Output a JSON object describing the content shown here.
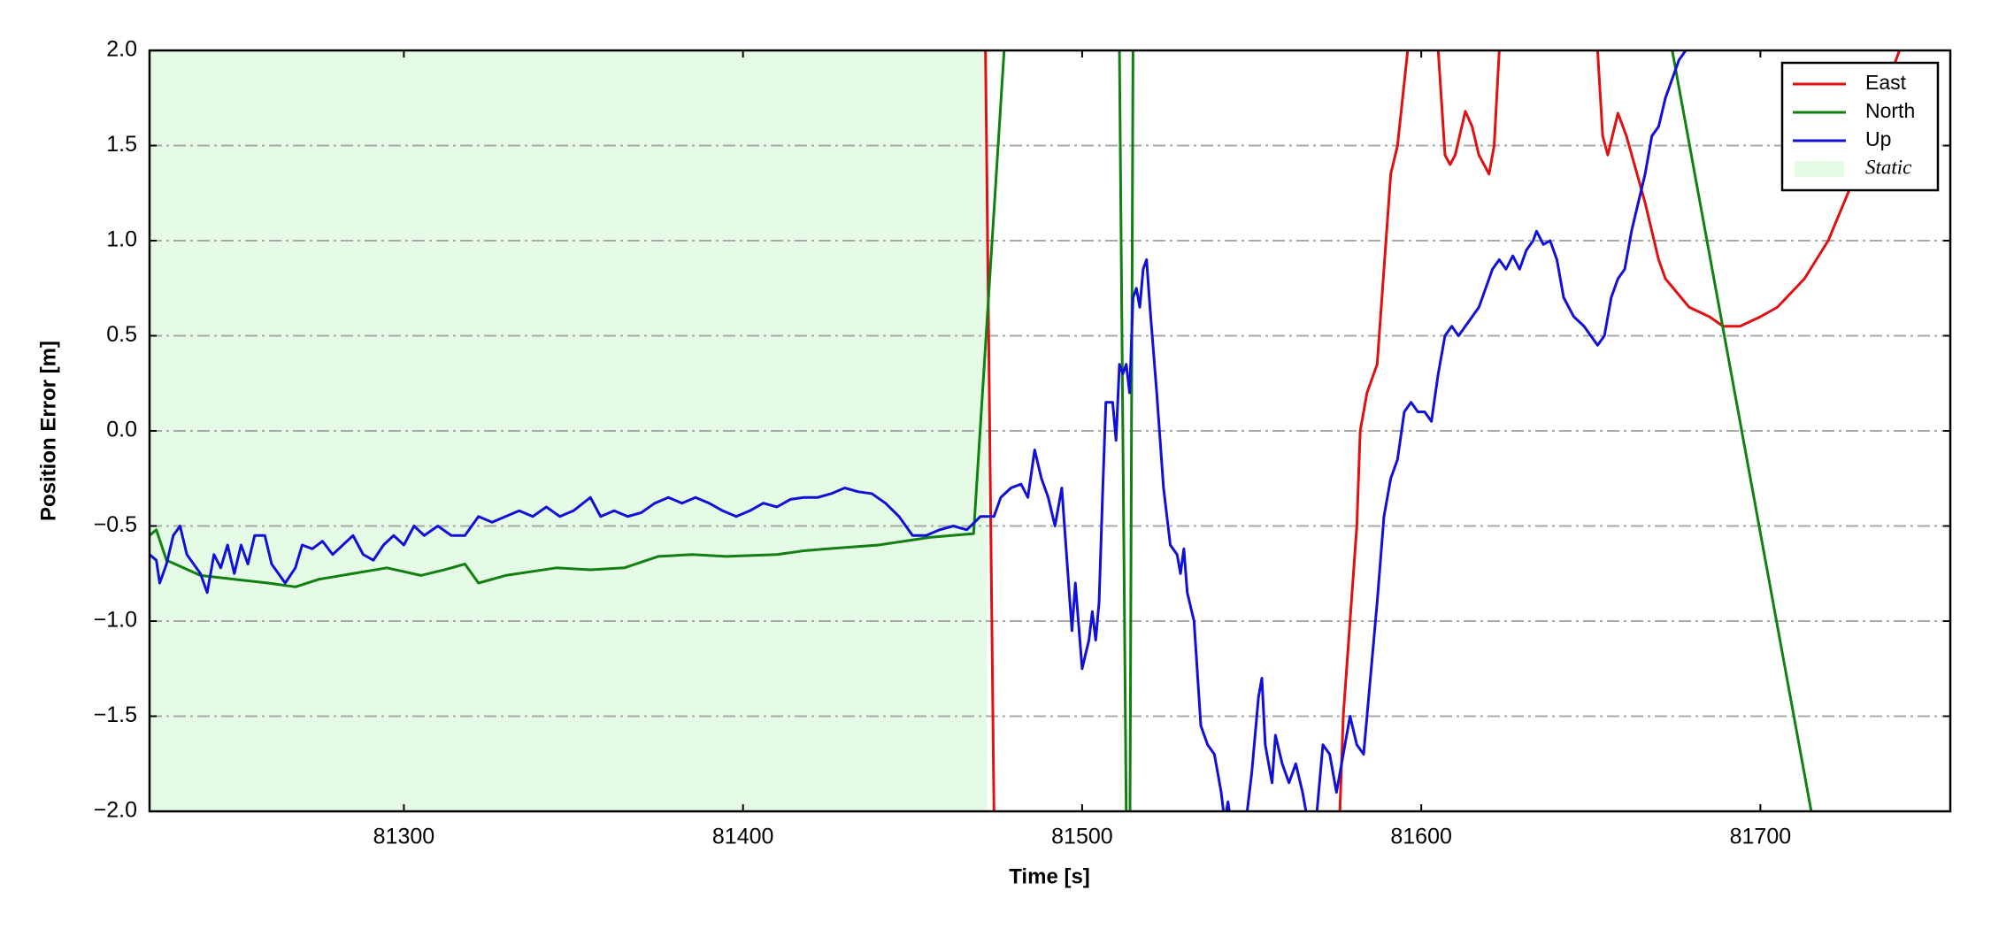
{
  "chart_data": {
    "type": "line",
    "xlabel": "Time [s]",
    "ylabel": "Position Error [m]",
    "xlim": [
      81225,
      81756
    ],
    "ylim": [
      -2.0,
      2.0
    ],
    "xticks": [
      81300,
      81400,
      81500,
      81600,
      81700
    ],
    "yticks": [
      {
        "value": -2.0,
        "label": "−2.0"
      },
      {
        "value": -1.5,
        "label": "−1.5"
      },
      {
        "value": -1.0,
        "label": "−1.0"
      },
      {
        "value": -0.5,
        "label": "−0.5"
      },
      {
        "value": 0.0,
        "label": "0.0"
      },
      {
        "value": 0.5,
        "label": "0.5"
      },
      {
        "value": 1.0,
        "label": "1.0"
      },
      {
        "value": 1.5,
        "label": "1.5"
      },
      {
        "value": 2.0,
        "label": "2.0"
      }
    ],
    "grid": true,
    "legend": "upper right",
    "static_span": {
      "name": "Static",
      "color": "#e6fbe6",
      "range": [
        81225,
        81472
      ]
    },
    "series": [
      {
        "name": "East",
        "color": "#e01010",
        "x": [
          81470,
          81471.5,
          81474,
          81476,
          81574,
          81576,
          81577,
          81579,
          81581,
          81582,
          81584,
          81586,
          81587,
          81591,
          81593,
          81596,
          81600,
          81605,
          81607,
          81608.5,
          81610,
          81613,
          81615,
          81617,
          81620,
          81621.5,
          81623,
          81630,
          81652,
          81653.5,
          81655,
          81658,
          81660.5,
          81666,
          81670,
          81672,
          81679,
          81685,
          81689,
          81694,
          81700,
          81705,
          81713,
          81720,
          81727,
          81733,
          81741,
          81746
        ],
        "values": [
          2.5,
          2.0,
          -2.0,
          -2.5,
          -2.5,
          -2.0,
          -1.5,
          -1.0,
          -0.5,
          0.0,
          0.2,
          0.3,
          0.35,
          1.35,
          1.5,
          2.0,
          2.5,
          2.0,
          1.45,
          1.4,
          1.45,
          1.68,
          1.6,
          1.45,
          1.35,
          1.5,
          2.0,
          2.5,
          2.0,
          1.55,
          1.45,
          1.67,
          1.55,
          1.2,
          0.9,
          0.8,
          0.65,
          0.6,
          0.55,
          0.55,
          0.6,
          0.65,
          0.8,
          1.0,
          1.3,
          1.6,
          2.0,
          2.3
        ]
      },
      {
        "name": "North",
        "color": "#108010",
        "x": [
          81225,
          81227,
          81230,
          81235,
          81240,
          81250,
          81260,
          81268,
          81275,
          81285,
          81295,
          81305,
          81312,
          81318,
          81322,
          81330,
          81345,
          81355,
          81365,
          81375,
          81385,
          81395,
          81410,
          81418,
          81425,
          81440,
          81455,
          81468,
          81477,
          81485,
          81505,
          81511,
          81513,
          81514,
          81515,
          81520,
          81670,
          81674,
          81715,
          81720
        ],
        "values": [
          -0.55,
          -0.52,
          -0.68,
          -0.72,
          -0.76,
          -0.78,
          -0.8,
          -0.82,
          -0.78,
          -0.75,
          -0.72,
          -0.76,
          -0.73,
          -0.7,
          -0.8,
          -0.76,
          -0.72,
          -0.73,
          -0.72,
          -0.66,
          -0.65,
          -0.66,
          -0.65,
          -0.63,
          -0.62,
          -0.6,
          -0.56,
          -0.54,
          2.0,
          3.0,
          3.0,
          2.0,
          -2.0,
          -2.5,
          2.0,
          3.0,
          3.0,
          2.0,
          -2.0,
          -2.5
        ]
      },
      {
        "name": "Up",
        "color": "#1010d8",
        "x": [
          81225,
          81227,
          81228,
          81230,
          81232,
          81234,
          81236,
          81238,
          81240,
          81242,
          81244,
          81246,
          81248,
          81250,
          81252,
          81254,
          81256,
          81259,
          81261,
          81263,
          81265,
          81268,
          81270,
          81273,
          81276,
          81279,
          81282,
          81285,
          81288,
          81291,
          81294,
          81297,
          81300,
          81303,
          81306,
          81310,
          81314,
          81318,
          81322,
          81326,
          81330,
          81334,
          81338,
          81342,
          81346,
          81350,
          81355,
          81358,
          81362,
          81366,
          81370,
          81374,
          81378,
          81382,
          81386,
          81390,
          81394,
          81398,
          81402,
          81406,
          81410,
          81414,
          81418,
          81422,
          81426,
          81430,
          81434,
          81438,
          81442,
          81446,
          81450,
          81454,
          81458,
          81462,
          81466,
          81470,
          81474,
          81476,
          81479,
          81482,
          81484,
          81486,
          81488,
          81490,
          81492,
          81494,
          81496,
          81497,
          81498,
          81500,
          81502,
          81503,
          81504,
          81505,
          81506,
          81507,
          81509,
          81510,
          81511,
          81512,
          81513,
          81514,
          81515,
          81516,
          81517,
          81518,
          81519,
          81520,
          81522,
          81524,
          81526,
          81528,
          81529,
          81530,
          81531,
          81533,
          81535,
          81537,
          81539,
          81541,
          81542,
          81543,
          81545,
          81548,
          81550,
          81552,
          81553,
          81554,
          81556,
          81557,
          81559,
          81561,
          81563,
          81565,
          81567,
          81569,
          81571,
          81573,
          81575,
          81577,
          81579,
          81581,
          81583,
          81585,
          81587,
          81589,
          81591,
          81593,
          81595,
          81597,
          81599,
          81601,
          81603,
          81605,
          81607,
          81609,
          81611,
          81613,
          81615,
          81617,
          81619,
          81621,
          81623,
          81625,
          81627,
          81629,
          81631,
          81633,
          81634,
          81636,
          81638,
          81640,
          81642,
          81645,
          81648,
          81650,
          81652,
          81654,
          81656,
          81658,
          81660,
          81662,
          81664,
          81666,
          81668,
          81670,
          81672,
          81674,
          81676,
          81678,
          81680
        ],
        "values": [
          -0.65,
          -0.68,
          -0.8,
          -0.7,
          -0.55,
          -0.5,
          -0.65,
          -0.7,
          -0.75,
          -0.85,
          -0.65,
          -0.72,
          -0.6,
          -0.75,
          -0.6,
          -0.7,
          -0.55,
          -0.55,
          -0.7,
          -0.75,
          -0.8,
          -0.72,
          -0.6,
          -0.62,
          -0.58,
          -0.65,
          -0.6,
          -0.55,
          -0.65,
          -0.68,
          -0.6,
          -0.55,
          -0.6,
          -0.5,
          -0.55,
          -0.5,
          -0.55,
          -0.55,
          -0.45,
          -0.48,
          -0.45,
          -0.42,
          -0.45,
          -0.4,
          -0.45,
          -0.42,
          -0.35,
          -0.45,
          -0.42,
          -0.45,
          -0.43,
          -0.38,
          -0.35,
          -0.38,
          -0.35,
          -0.38,
          -0.42,
          -0.45,
          -0.42,
          -0.38,
          -0.4,
          -0.36,
          -0.35,
          -0.35,
          -0.33,
          -0.3,
          -0.32,
          -0.33,
          -0.38,
          -0.45,
          -0.55,
          -0.55,
          -0.52,
          -0.5,
          -0.52,
          -0.45,
          -0.45,
          -0.35,
          -0.3,
          -0.28,
          -0.35,
          -0.1,
          -0.25,
          -0.35,
          -0.5,
          -0.3,
          -0.8,
          -1.05,
          -0.8,
          -1.25,
          -1.1,
          -0.95,
          -1.1,
          -0.9,
          -0.35,
          0.15,
          0.15,
          -0.05,
          0.35,
          0.3,
          0.35,
          0.2,
          0.7,
          0.75,
          0.65,
          0.85,
          0.9,
          0.65,
          0.2,
          -0.3,
          -0.6,
          -0.65,
          -0.75,
          -0.62,
          -0.85,
          -1.0,
          -1.55,
          -1.65,
          -1.7,
          -1.9,
          -2.05,
          -1.95,
          -2.2,
          -2.1,
          -1.8,
          -1.4,
          -1.3,
          -1.65,
          -1.85,
          -1.6,
          -1.75,
          -1.85,
          -1.75,
          -1.9,
          -2.1,
          -2.05,
          -1.65,
          -1.7,
          -1.9,
          -1.7,
          -1.5,
          -1.65,
          -1.7,
          -1.3,
          -0.9,
          -0.45,
          -0.25,
          -0.15,
          0.1,
          0.15,
          0.1,
          0.1,
          0.05,
          0.3,
          0.5,
          0.55,
          0.5,
          0.55,
          0.6,
          0.65,
          0.75,
          0.85,
          0.9,
          0.85,
          0.92,
          0.85,
          0.95,
          1.0,
          1.05,
          0.98,
          1.0,
          0.9,
          0.7,
          0.6,
          0.55,
          0.5,
          0.45,
          0.5,
          0.7,
          0.8,
          0.85,
          1.05,
          1.2,
          1.35,
          1.55,
          1.6,
          1.75,
          1.85,
          1.95,
          2.0,
          2.2
        ]
      }
    ]
  }
}
